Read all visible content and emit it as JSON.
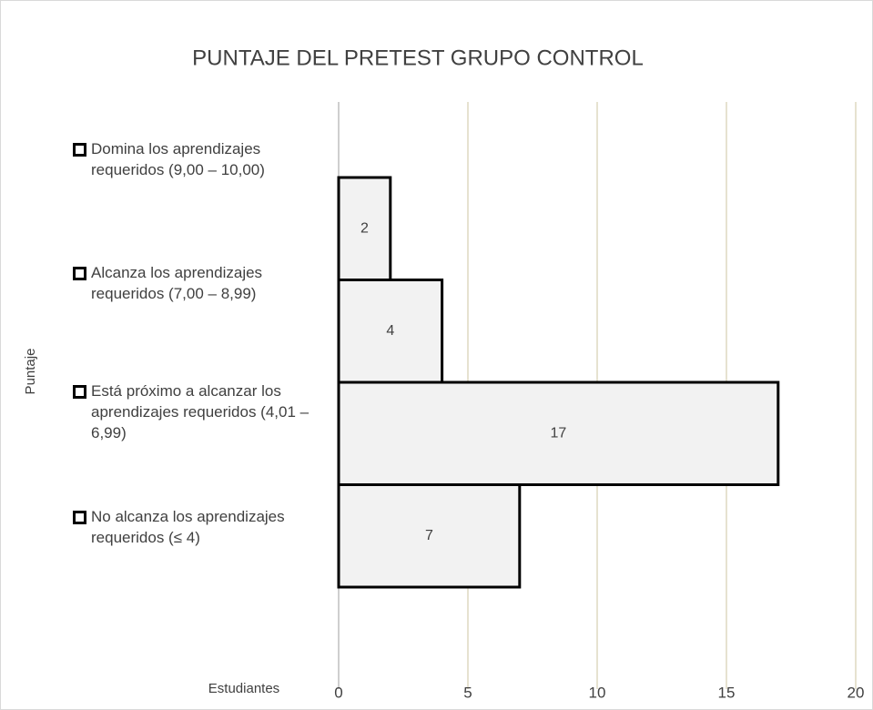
{
  "chart_data": {
    "type": "barh",
    "title": "PUNTAJE DEL PRETEST GRUPO CONTROL",
    "y_label": "Puntaje",
    "x_label": "Estudiantes",
    "categories": [
      "Domina los aprendizajes requeridos (9,00 – 10,00)",
      "Alcanza los aprendizajes requeridos (7,00 – 8,99)",
      "Está próximo a alcanzar los aprendizajes requeridos (4,01 – 6,99)",
      "No alcanza los aprendizajes requeridos (≤ 4)"
    ],
    "values": [
      2,
      4,
      17,
      7
    ],
    "color": "#f2f2f2",
    "xlim": [
      0,
      20
    ],
    "xticks": [
      0,
      5,
      10,
      15,
      20
    ],
    "grid": true
  }
}
